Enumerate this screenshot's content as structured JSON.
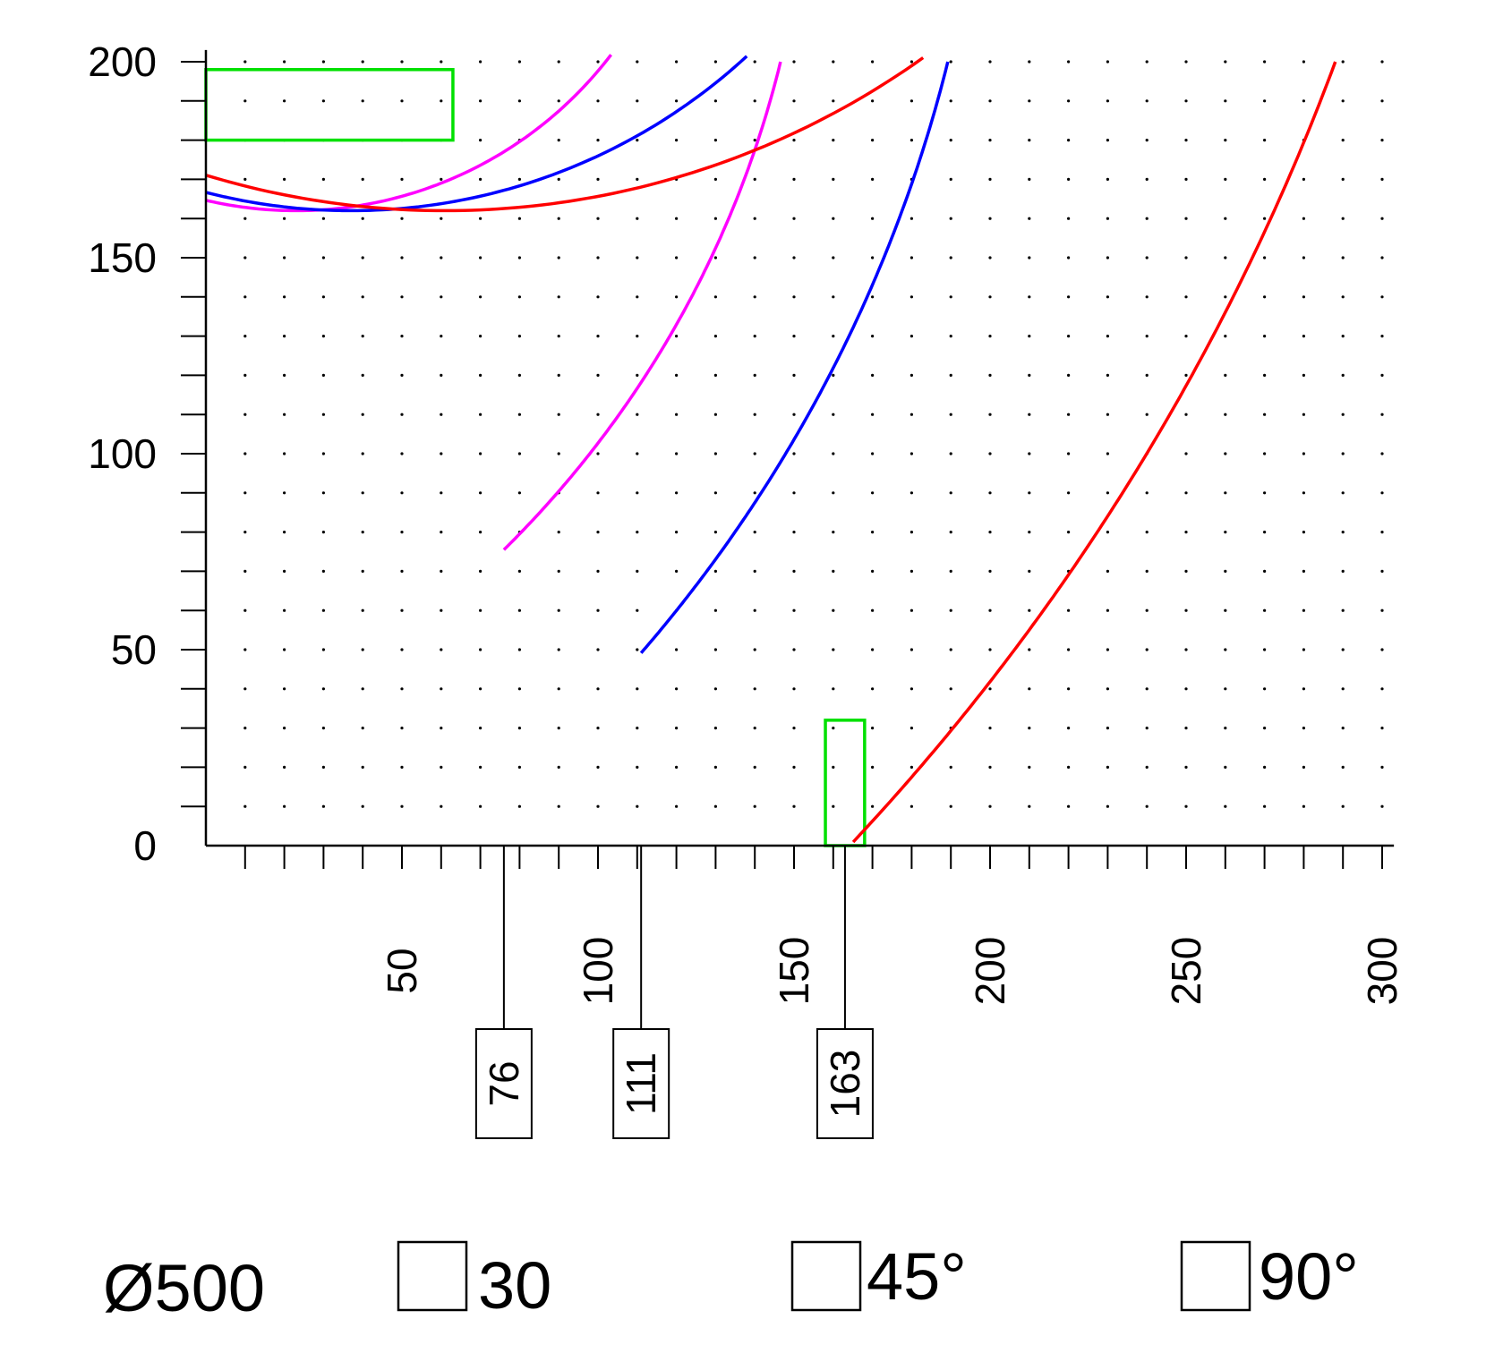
{
  "chart_data": {
    "type": "line",
    "title": "",
    "xlabel": "",
    "ylabel": "",
    "xlim": [
      0,
      302
    ],
    "ylim": [
      0,
      200
    ],
    "grid": "dots",
    "x_ticks": [
      50,
      100,
      150,
      200,
      250,
      300
    ],
    "y_ticks": [
      0,
      50,
      100,
      150,
      200
    ],
    "series": [
      {
        "color": "#ff00ff",
        "arc": {
          "center_x": -108,
          "center_y": 262,
          "radius": 262,
          "x_start": 76
        },
        "arc_top": {
          "center_x": 23,
          "center_y": 263,
          "radius": 101
        }
      },
      {
        "color": "#0000ff",
        "arc": {
          "center_x": -165,
          "center_y": 288,
          "radius": 365,
          "x_start": 111
        },
        "arc_top": {
          "center_x": 37,
          "center_y": 311,
          "radius": 149
        }
      },
      {
        "color": "#ff0000",
        "arc": {
          "center_x": -268,
          "center_y": 406,
          "radius": 593,
          "x_start": 163
        },
        "arc_top": {
          "center_x": 61,
          "center_y": 372,
          "radius": 210
        }
      }
    ],
    "markers": [
      {
        "label": "76",
        "x": 76
      },
      {
        "label": "111",
        "x": 111
      },
      {
        "label": "163",
        "x": 163
      }
    ],
    "highlight_boxes": [
      {
        "color": "#00e000",
        "x": [
          0,
          63
        ],
        "y": [
          180,
          198
        ]
      },
      {
        "color": "#00e000",
        "x": [
          158,
          168
        ],
        "y": [
          0,
          32
        ]
      }
    ]
  },
  "footer": {
    "diameter": "Ø500",
    "options": [
      "30",
      "45°",
      "90°"
    ]
  }
}
